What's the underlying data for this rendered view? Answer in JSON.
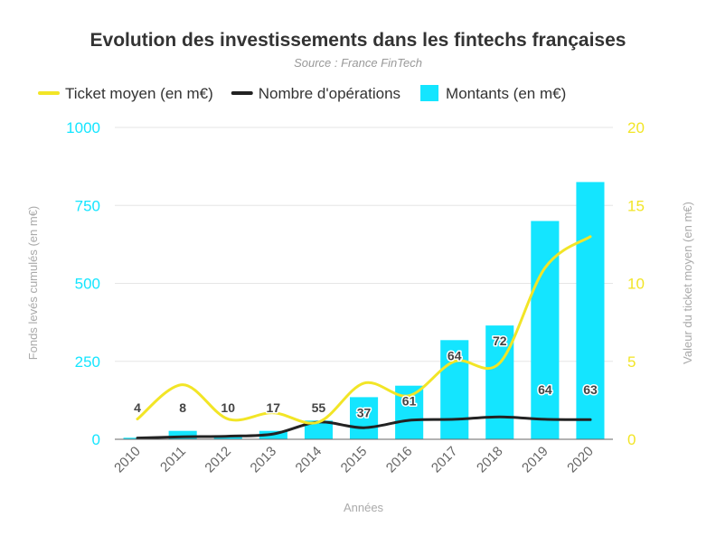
{
  "chart_data": {
    "type": "bar",
    "title": "Evolution des investissements dans les fintechs françaises",
    "subtitle": "Source : France FinTech",
    "xlabel": "Années",
    "ylabel": "Fonds levés cumulés (en m€)",
    "ylabel_right": "Valeur du ticket moyen (en m€)",
    "categories": [
      "2010",
      "2011",
      "2012",
      "2013",
      "2014",
      "2015",
      "2016",
      "2017",
      "2018",
      "2019",
      "2020"
    ],
    "ylim": [
      0,
      1000
    ],
    "ylim_right": [
      0,
      20
    ],
    "yticks": [
      0,
      250,
      500,
      750,
      1000
    ],
    "yticks_right": [
      0,
      5,
      10,
      15,
      20
    ],
    "grid": true,
    "legend_position": "top",
    "series": [
      {
        "name": "Ticket moyen (en m€)",
        "type": "line",
        "axis": "right",
        "color": "#f2e526",
        "values": [
          1.3,
          3.5,
          1.3,
          1.7,
          1.1,
          3.6,
          2.8,
          5.0,
          4.9,
          11.0,
          13.0
        ]
      },
      {
        "name": "Nombre d'opérations",
        "type": "line",
        "axis": "left",
        "color": "#222222",
        "values": [
          4,
          8,
          10,
          17,
          55,
          37,
          61,
          64,
          72,
          64,
          63
        ]
      },
      {
        "name": "Montants (en m€)",
        "type": "bar",
        "axis": "left",
        "color": "#14e5ff",
        "values": [
          5,
          27,
          13,
          27,
          60,
          135,
          172,
          318,
          365,
          700,
          825
        ]
      }
    ],
    "data_labels": [
      "4",
      "8",
      "10",
      "17",
      "55",
      "37",
      "61",
      "64",
      "72",
      "64",
      "63"
    ],
    "axis_colors": {
      "left": "#14e5ff",
      "right": "#f2e526"
    }
  }
}
